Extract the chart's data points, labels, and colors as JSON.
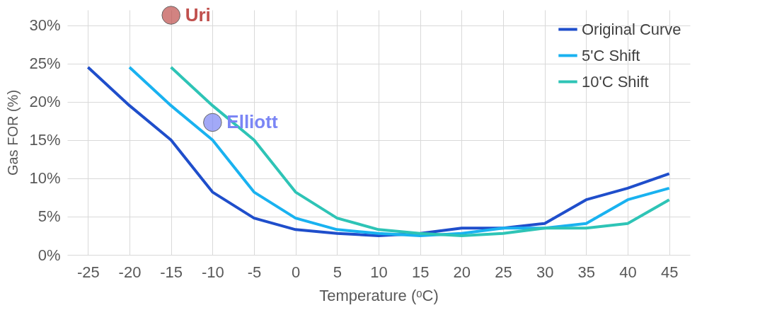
{
  "chart_data": {
    "type": "line",
    "xlabel": "Temperature (ᵒC)",
    "ylabel": "Gas FOR (%)",
    "categories": [
      "-25",
      "-20",
      "-15",
      "-10",
      "-5",
      "0",
      "5",
      "10",
      "15",
      "20",
      "25",
      "30",
      "35",
      "40",
      "45"
    ],
    "series": [
      {
        "name": "Original Curve",
        "color": "#1f4ecb",
        "values": [
          24.5,
          19.5,
          15,
          8.2,
          4.8,
          3.3,
          2.8,
          2.5,
          2.8,
          3.5,
          3.5,
          4.1,
          7.2,
          8.7,
          10.6
        ]
      },
      {
        "name": "5'C Shift",
        "color": "#19b2f0",
        "values": [
          null,
          24.5,
          19.5,
          15,
          8.2,
          4.8,
          3.3,
          2.8,
          2.5,
          2.8,
          3.5,
          3.5,
          4.1,
          7.2,
          8.7
        ]
      },
      {
        "name": "10'C Shift",
        "color": "#2ec4b6",
        "values": [
          null,
          null,
          24.5,
          19.5,
          15,
          8.2,
          4.8,
          3.3,
          2.8,
          2.5,
          2.8,
          3.5,
          3.5,
          4.1,
          7.2
        ]
      },
      {
        "name": "Uri",
        "type": "scatter",
        "marker": "circle",
        "color": "#c0504d",
        "x": [
          "-15"
        ],
        "values": [
          31.3
        ]
      },
      {
        "name": "Elliott",
        "type": "scatter",
        "marker": "circle",
        "color": "#7b86f5",
        "x": [
          "-10"
        ],
        "values": [
          17.3
        ]
      }
    ],
    "ylim": [
      0,
      32
    ],
    "yticks": [
      {
        "value": 0,
        "label": "0%"
      },
      {
        "value": 5,
        "label": "5%"
      },
      {
        "value": 10,
        "label": "10%"
      },
      {
        "value": 15,
        "label": "15%"
      },
      {
        "value": 20,
        "label": "20%"
      },
      {
        "value": 25,
        "label": "25%"
      },
      {
        "value": 30,
        "label": "30%"
      }
    ],
    "grid": true,
    "legend": "top right",
    "line_style": "solid"
  }
}
